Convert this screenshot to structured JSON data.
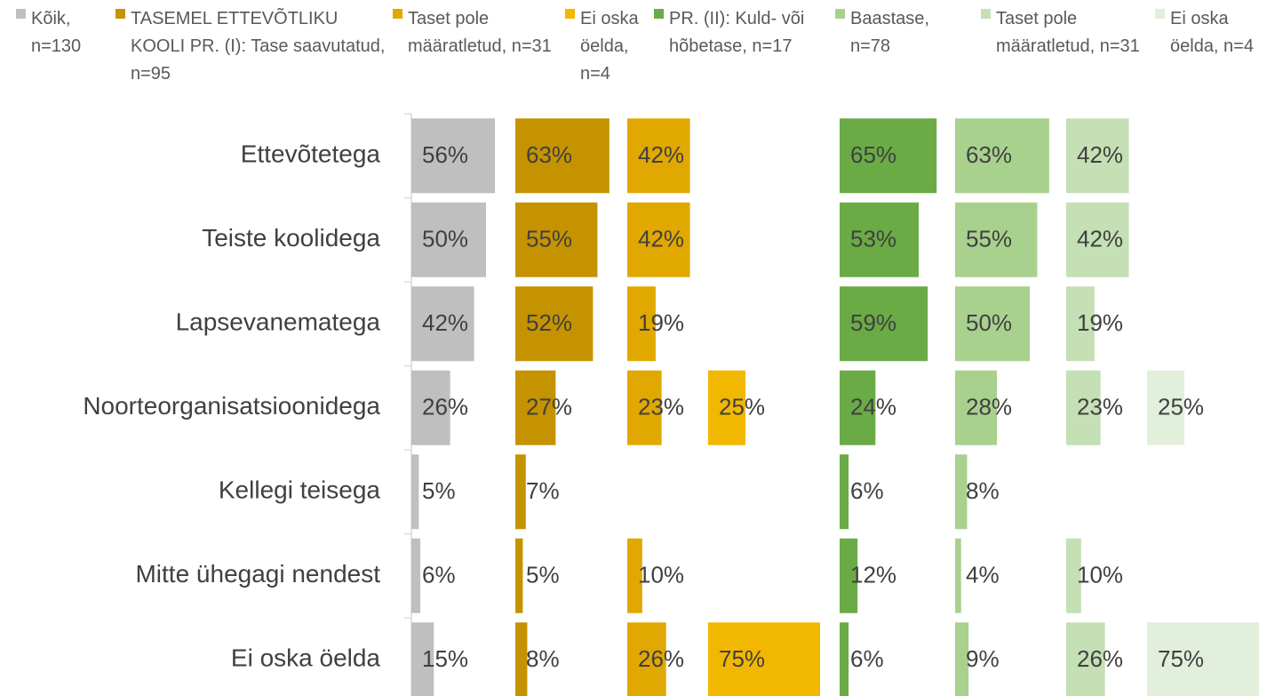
{
  "chart_data": {
    "type": "bar-panels",
    "categories": [
      "Ettevõtetega",
      "Teiste koolidega",
      "Lapsevanematega",
      "Noorteorganisatsioonidega",
      "Kellegi teisega",
      "Mitte ühegagi nendest",
      "Ei oska öelda"
    ],
    "series": [
      {
        "name": "Kõik, n=130",
        "color": "#bfbfbf",
        "values": [
          56,
          50,
          42,
          26,
          5,
          6,
          15
        ],
        "value_labels": [
          "56%",
          "50%",
          "42%",
          "26%",
          "5%",
          "6%",
          "15%"
        ]
      },
      {
        "name": "TASEMEL ETTEVÕTLIKU KOOLI PR. (I): Tase saavutatud, n=95",
        "color": "#c59300",
        "values": [
          63,
          55,
          52,
          27,
          7,
          5,
          8
        ],
        "value_labels": [
          "63%",
          "55%",
          "52%",
          "27%",
          "7%",
          "5%",
          "8%"
        ]
      },
      {
        "name": "Taset pole määratletud, n=31",
        "color": "#e0a800",
        "values": [
          42,
          42,
          19,
          23,
          null,
          10,
          26
        ],
        "value_labels": [
          "42%",
          "42%",
          "19%",
          "23%",
          null,
          "10%",
          "26%"
        ]
      },
      {
        "name": "Ei oska öelda, n=4",
        "color": "#f2b700",
        "values": [
          null,
          null,
          null,
          25,
          null,
          null,
          75
        ],
        "value_labels": [
          null,
          null,
          null,
          "25%",
          null,
          null,
          "75%"
        ]
      },
      {
        "name": "PR. (II): Kuld- või hõbetase, n=17",
        "color": "#6aab46",
        "values": [
          65,
          53,
          59,
          24,
          6,
          12,
          6
        ],
        "value_labels": [
          "65%",
          "53%",
          "59%",
          "24%",
          "6%",
          "12%",
          "6%"
        ]
      },
      {
        "name": "Baastase, n=78",
        "color": "#a9d18e",
        "values": [
          63,
          55,
          50,
          28,
          8,
          4,
          9
        ],
        "value_labels": [
          "63%",
          "55%",
          "50%",
          "28%",
          "8%",
          "4%",
          "9%"
        ]
      },
      {
        "name": "Taset pole määratletud, n=31",
        "color": "#c5e0b4",
        "values": [
          42,
          42,
          19,
          23,
          null,
          10,
          26
        ],
        "value_labels": [
          "42%",
          "42%",
          "19%",
          "23%",
          null,
          "10%",
          "26%"
        ]
      },
      {
        "name": "Ei oska öelda, n=4",
        "color": "#e2efda",
        "values": [
          null,
          null,
          null,
          25,
          null,
          null,
          75
        ],
        "value_labels": [
          null,
          null,
          null,
          "25%",
          null,
          null,
          "75%"
        ]
      }
    ]
  }
}
